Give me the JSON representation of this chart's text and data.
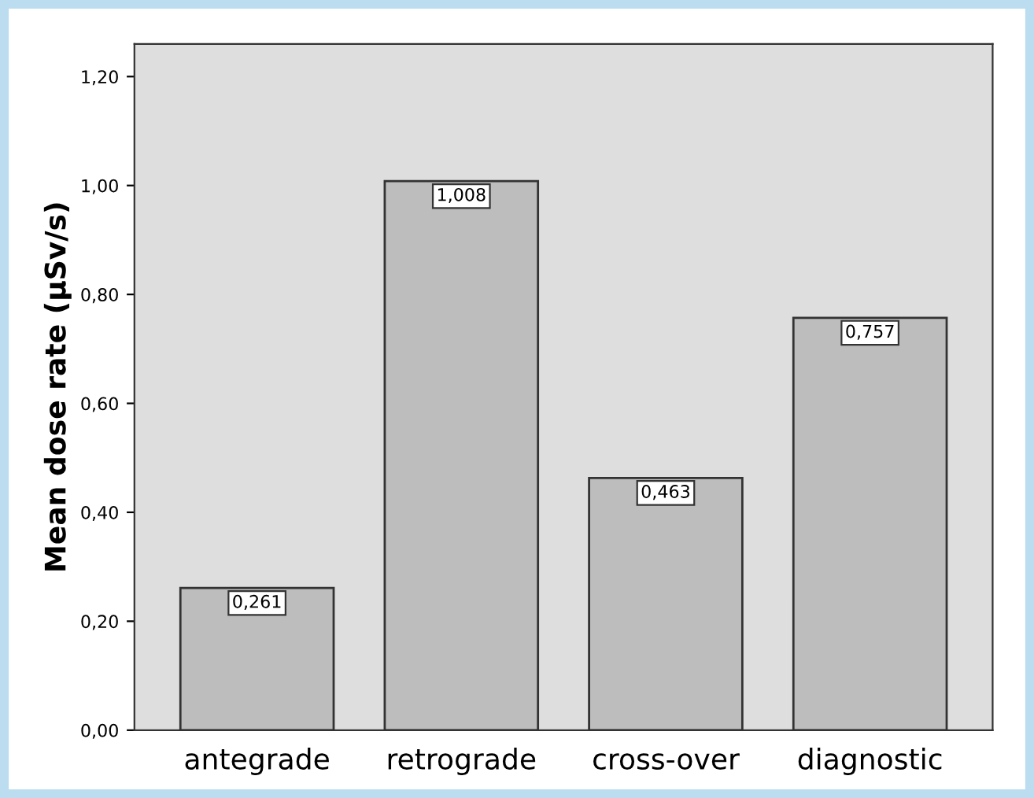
{
  "chart_data": {
    "type": "bar",
    "ylabel": "Mean dose rate (µSv/s)",
    "categories": [
      "antegrade",
      "retrograde",
      "cross-over",
      "diagnostic"
    ],
    "values": [
      0.261,
      1.008,
      0.463,
      0.757
    ],
    "value_labels": [
      "0,261",
      "1,008",
      "0,463",
      "0,757"
    ],
    "color": "#bdbdbd",
    "ylim": [
      0,
      1.26
    ],
    "yticks": [
      {
        "value": 0,
        "label": "0,00"
      },
      {
        "value": 0.2,
        "label": "0,20"
      },
      {
        "value": 0.4,
        "label": "0,40"
      },
      {
        "value": 0.6,
        "label": "0,60"
      },
      {
        "value": 0.8,
        "label": "0,80"
      },
      {
        "value": 1.0,
        "label": "1,00"
      },
      {
        "value": 1.2,
        "label": "1,20"
      }
    ]
  }
}
